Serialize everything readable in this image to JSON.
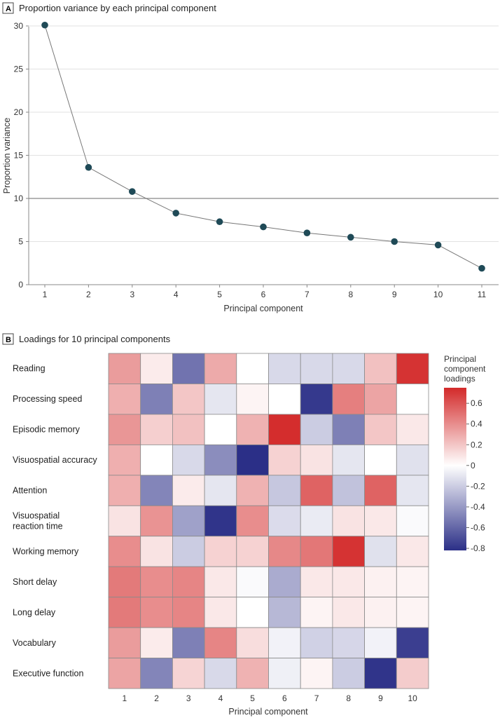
{
  "chart_data": [
    {
      "type": "line",
      "panel": "A",
      "title": "Proportion variance by each principal component",
      "xlabel": "Principal component",
      "ylabel": "Proportion variance",
      "x": [
        1,
        2,
        3,
        4,
        5,
        6,
        7,
        8,
        9,
        10,
        11
      ],
      "values": [
        30.1,
        13.6,
        10.8,
        8.3,
        7.3,
        6.7,
        6.0,
        5.5,
        5.0,
        4.6,
        1.9
      ],
      "xticks": [
        "1",
        "2",
        "3",
        "4",
        "5",
        "6",
        "7",
        "8",
        "9",
        "10",
        "11"
      ],
      "yticks": [
        "0",
        "5",
        "10",
        "15",
        "20",
        "25",
        "30"
      ],
      "ylim": [
        0,
        30
      ],
      "reference_line": 10,
      "grid": true,
      "marker_color": "#1f4a57",
      "line_color": "#777777"
    },
    {
      "type": "heatmap",
      "panel": "B",
      "title": "Loadings for 10 principal components",
      "xlabel": "Principal component",
      "columns": [
        "1",
        "2",
        "3",
        "4",
        "5",
        "6",
        "7",
        "8",
        "9",
        "10"
      ],
      "rows": [
        "Reading",
        "Processing speed",
        "Episodic memory",
        "Visuospatial accuracy",
        "Attention",
        "Visuospatial reaction time",
        "Working memory",
        "Short delay",
        "Long delay",
        "Vocabulary",
        "Executive function"
      ],
      "values": [
        [
          0.35,
          0.07,
          -0.55,
          0.3,
          0.0,
          -0.15,
          -0.15,
          -0.15,
          0.22,
          0.72
        ],
        [
          0.28,
          -0.5,
          0.2,
          -0.1,
          0.04,
          0.0,
          -0.78,
          0.45,
          0.32,
          0.0
        ],
        [
          0.37,
          0.17,
          0.22,
          0.0,
          0.27,
          0.74,
          -0.2,
          -0.5,
          0.2,
          0.08
        ],
        [
          0.28,
          0.0,
          -0.15,
          -0.45,
          -0.82,
          0.16,
          0.1,
          -0.1,
          0.0,
          -0.12
        ],
        [
          0.28,
          -0.48,
          0.07,
          -0.1,
          0.27,
          -0.22,
          0.55,
          -0.24,
          0.55,
          -0.1
        ],
        [
          0.1,
          0.38,
          -0.37,
          -0.8,
          0.4,
          -0.14,
          -0.08,
          0.1,
          0.08,
          -0.02
        ],
        [
          0.4,
          0.1,
          -0.2,
          0.16,
          0.16,
          0.42,
          0.48,
          0.72,
          -0.12,
          0.08
        ],
        [
          0.47,
          0.4,
          0.43,
          0.08,
          -0.02,
          -0.33,
          0.08,
          0.08,
          0.05,
          0.04
        ],
        [
          0.47,
          0.4,
          0.43,
          0.08,
          0.0,
          -0.28,
          0.04,
          0.08,
          0.05,
          0.04
        ],
        [
          0.35,
          0.07,
          -0.5,
          0.43,
          0.12,
          -0.05,
          -0.18,
          -0.16,
          -0.05,
          -0.76
        ],
        [
          0.32,
          -0.48,
          0.15,
          -0.15,
          0.27,
          -0.06,
          0.04,
          -0.2,
          -0.8,
          0.18
        ]
      ],
      "legend": {
        "title": "Principal component loadings",
        "ticks": [
          "0.6",
          "0.4",
          "0.2",
          "0",
          "-0.2",
          "-0.4",
          "-0.6",
          "-0.8"
        ],
        "tick_values": [
          0.6,
          0.4,
          0.2,
          0,
          -0.2,
          -0.4,
          -0.6,
          -0.8
        ],
        "range": [
          -0.82,
          0.75
        ],
        "placement": "right"
      },
      "colors": {
        "negative": "#2b2f87",
        "zero": "#ffffff",
        "positive": "#d32a2a"
      }
    }
  ]
}
